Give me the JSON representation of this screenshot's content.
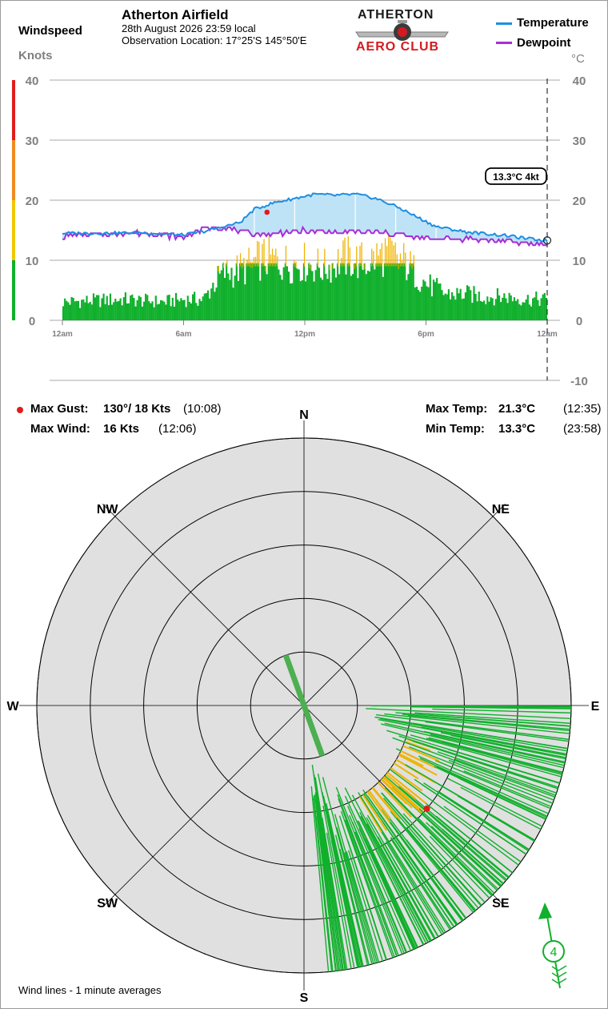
{
  "header": {
    "windspeed_label": "Windspeed",
    "units_label": "Knots",
    "title": "Atherton Airfield",
    "date_line": "28th August 2026  23:59 local",
    "location_line": "Observation Location: 17°25'S 145°50'E",
    "logo_top": "ATHERTON",
    "logo_bottom": "AERO CLUB",
    "temp_unit": "°C"
  },
  "legend": {
    "temperature": "Temperature",
    "dewpoint": "Dewpoint"
  },
  "colors": {
    "temperature": "#1e8fe0",
    "dewpoint": "#a62fd6",
    "temp_fill": "#bfe3f6",
    "wind_low": "#10b02c",
    "wind_high": "#f0b400",
    "gust_marker": "#e31a1c",
    "scale_green": "#10b02c",
    "scale_yellow": "#f0c800",
    "scale_orange": "#f08c20",
    "scale_red": "#e01c1c"
  },
  "chart_data": {
    "type": "line",
    "title": "Atherton Airfield",
    "ylabel_left": "Knots",
    "ylabel_right": "°C",
    "x_ticks": [
      "12am",
      "6am",
      "12pm",
      "6pm",
      "12am"
    ],
    "y_left_ticks": [
      "40",
      "30",
      "20",
      "10",
      "0"
    ],
    "y_right_ticks": [
      "40",
      "30",
      "20",
      "10",
      "0",
      "-10"
    ],
    "ylim_knots": [
      0,
      40
    ],
    "ylim_temp": [
      -10,
      40
    ],
    "grid": true,
    "current_reading": "13.3°C  4kt",
    "series": [
      {
        "name": "Temperature",
        "hours": [
          0,
          2,
          4,
          6,
          7,
          8,
          8.8,
          9.5,
          10.5,
          11.5,
          12.5,
          13.5,
          14.5,
          15.5,
          16.5,
          17.5,
          18.5,
          20,
          22,
          23,
          24
        ],
        "values": [
          14.5,
          14.5,
          14.6,
          14.2,
          14.8,
          15.6,
          16.3,
          18.5,
          19.6,
          20.3,
          21.0,
          20.8,
          21.0,
          20.3,
          19.0,
          17.3,
          15.6,
          14.7,
          14.1,
          13.6,
          13.3
        ]
      },
      {
        "name": "Dewpoint",
        "hours": [
          0,
          2,
          4,
          6,
          7,
          8,
          9,
          10,
          12,
          14,
          16,
          17,
          18,
          20,
          22,
          24
        ],
        "values": [
          14.0,
          14.3,
          14.6,
          13.8,
          15.3,
          15.6,
          14.6,
          14.3,
          14.9,
          14.6,
          14.6,
          14.1,
          13.6,
          13.6,
          13.1,
          12.7
        ]
      },
      {
        "name": "Wind speed (kt)",
        "hours": [
          0,
          3,
          5,
          6,
          7,
          7.5,
          8,
          9,
          10,
          11,
          12,
          13,
          14,
          15,
          16,
          17,
          17.5,
          18,
          19,
          20,
          21,
          22,
          23,
          24
        ],
        "values": [
          3.5,
          4,
          3.5,
          4,
          4,
          7,
          9,
          10,
          12,
          11,
          11,
          10,
          12,
          11,
          13,
          11,
          9,
          7,
          5,
          5,
          4.5,
          4.5,
          4,
          4
        ]
      }
    ],
    "max_gust_marker": {
      "hour": 10.13,
      "knots": 18
    }
  },
  "stats": {
    "max_gust_label": "Max Gust:",
    "max_gust_value": "130°/ 18 Kts",
    "max_gust_time": "(10:08)",
    "max_wind_label": "Max Wind:",
    "max_wind_value": "16 Kts",
    "max_wind_time": "(12:06)",
    "max_temp_label": "Max Temp:",
    "max_temp_value": "21.3°C",
    "max_temp_time": "(12:35)",
    "min_temp_label": "Min Temp:",
    "min_temp_value": "13.3°C",
    "min_temp_time": "(23:58)"
  },
  "rose": {
    "type": "polar",
    "compass": {
      "n": "N",
      "ne": "NE",
      "e": "E",
      "se": "SE",
      "s": "S",
      "sw": "SW",
      "w": "W",
      "nw": "NW"
    },
    "ring_knots": [
      2,
      6,
      10,
      14,
      18
    ],
    "wind_sector_deg": [
      90,
      175
    ],
    "mean_direction_deg": 160,
    "mean_speed_kt": 4,
    "arrow_speed": "4",
    "gust_marker": {
      "direction_deg": 130,
      "knots": 18
    },
    "footnote": "Wind lines - 1 minute averages"
  }
}
